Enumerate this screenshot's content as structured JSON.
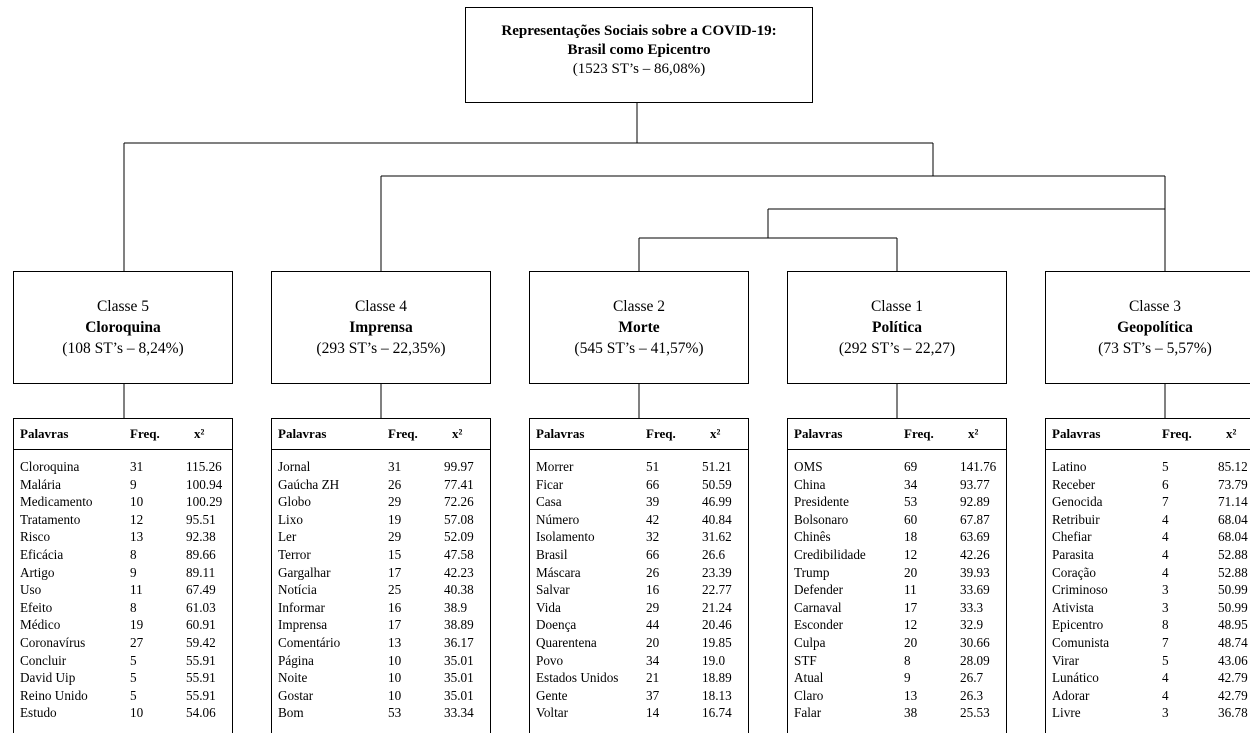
{
  "root": {
    "title_line1": "Representações Sociais sobre a COVID-19:",
    "title_line2": "Brasil como Epicentro",
    "count": "(1523 ST’s – 86,08%)"
  },
  "table_headers": {
    "word": "Palavras",
    "freq": "Freq.",
    "x2": "x²"
  },
  "classes": [
    {
      "label": "Classe 5",
      "name": "Cloroquina",
      "count": "(108 ST’s – 8,24%)",
      "rows": [
        {
          "w": "Cloroquina",
          "f": "31",
          "x": "115.26"
        },
        {
          "w": "Malária",
          "f": "9",
          "x": "100.94"
        },
        {
          "w": "Medicamento",
          "f": "10",
          "x": "100.29"
        },
        {
          "w": "Tratamento",
          "f": "12",
          "x": "95.51"
        },
        {
          "w": "Risco",
          "f": "13",
          "x": "92.38"
        },
        {
          "w": "Eficácia",
          "f": "8",
          "x": "89.66"
        },
        {
          "w": "Artigo",
          "f": "9",
          "x": "89.11"
        },
        {
          "w": "Uso",
          "f": "11",
          "x": "67.49"
        },
        {
          "w": "Efeito",
          "f": "8",
          "x": "61.03"
        },
        {
          "w": "Médico",
          "f": "19",
          "x": "60.91"
        },
        {
          "w": "Coronavírus",
          "f": "27",
          "x": "59.42"
        },
        {
          "w": "Concluir",
          "f": "5",
          "x": "55.91"
        },
        {
          "w": "David Uip",
          "f": "5",
          "x": "55.91"
        },
        {
          "w": "Reino Unido",
          "f": "5",
          "x": "55.91"
        },
        {
          "w": "Estudo",
          "f": "10",
          "x": "54.06"
        }
      ]
    },
    {
      "label": "Classe 4",
      "name": "Imprensa",
      "count": "(293 ST’s – 22,35%)",
      "rows": [
        {
          "w": "Jornal",
          "f": "31",
          "x": "99.97"
        },
        {
          "w": "Gaúcha ZH",
          "f": "26",
          "x": "77.41"
        },
        {
          "w": "Globo",
          "f": "29",
          "x": "72.26"
        },
        {
          "w": "Lixo",
          "f": "19",
          "x": "57.08"
        },
        {
          "w": "Ler",
          "f": "29",
          "x": "52.09"
        },
        {
          "w": "Terror",
          "f": "15",
          "x": "47.58"
        },
        {
          "w": "Gargalhar",
          "f": "17",
          "x": "42.23"
        },
        {
          "w": "Notícia",
          "f": "25",
          "x": "40.38"
        },
        {
          "w": "Informar",
          "f": "16",
          "x": "38.9"
        },
        {
          "w": "Imprensa",
          "f": "17",
          "x": "38.89"
        },
        {
          "w": "Comentário",
          "f": "13",
          "x": "36.17"
        },
        {
          "w": "Página",
          "f": "10",
          "x": "35.01"
        },
        {
          "w": "Noite",
          "f": "10",
          "x": "35.01"
        },
        {
          "w": "Gostar",
          "f": "10",
          "x": "35.01"
        },
        {
          "w": "Bom",
          "f": "53",
          "x": "33.34"
        }
      ]
    },
    {
      "label": "Classe 2",
      "name": "Morte",
      "count": "(545 ST’s – 41,57%)",
      "rows": [
        {
          "w": "Morrer",
          "f": "51",
          "x": "51.21"
        },
        {
          "w": "Ficar",
          "f": "66",
          "x": "50.59"
        },
        {
          "w": "Casa",
          "f": "39",
          "x": "46.99"
        },
        {
          "w": "Número",
          "f": "42",
          "x": "40.84"
        },
        {
          "w": "Isolamento",
          "f": "32",
          "x": "31.62"
        },
        {
          "w": "Brasil",
          "f": "66",
          "x": "26.6"
        },
        {
          "w": "Máscara",
          "f": "26",
          "x": "23.39"
        },
        {
          "w": "Salvar",
          "f": "16",
          "x": "22.77"
        },
        {
          "w": "Vida",
          "f": "29",
          "x": "21.24"
        },
        {
          "w": "Doença",
          "f": "44",
          "x": "20.46"
        },
        {
          "w": "Quarentena",
          "f": "20",
          "x": "19.85"
        },
        {
          "w": "Povo",
          "f": "34",
          "x": "19.0"
        },
        {
          "w": "Estados Unidos",
          "f": "21",
          "x": "18.89"
        },
        {
          "w": "Gente",
          "f": "37",
          "x": "18.13"
        },
        {
          "w": "Voltar",
          "f": "14",
          "x": "16.74"
        }
      ]
    },
    {
      "label": "Classe 1",
      "name": "Política",
      "count": "(292 ST’s – 22,27)",
      "rows": [
        {
          "w": "OMS",
          "f": "69",
          "x": "141.76"
        },
        {
          "w": "China",
          "f": "34",
          "x": "93.77"
        },
        {
          "w": "Presidente",
          "f": "53",
          "x": "92.89"
        },
        {
          "w": "Bolsonaro",
          "f": "60",
          "x": "67.87"
        },
        {
          "w": "Chinês",
          "f": "18",
          "x": "63.69"
        },
        {
          "w": "Credibilidade",
          "f": "12",
          "x": "42.26"
        },
        {
          "w": "Trump",
          "f": "20",
          "x": "39.93"
        },
        {
          "w": "Defender",
          "f": "11",
          "x": "33.69"
        },
        {
          "w": "Carnaval",
          "f": "17",
          "x": "33.3"
        },
        {
          "w": "Esconder",
          "f": "12",
          "x": "32.9"
        },
        {
          "w": "Culpa",
          "f": "20",
          "x": "30.66"
        },
        {
          "w": "STF",
          "f": "8",
          "x": "28.09"
        },
        {
          "w": "Atual",
          "f": "9",
          "x": "26.7"
        },
        {
          "w": "Claro",
          "f": "13",
          "x": "26.3"
        },
        {
          "w": "Falar",
          "f": "38",
          "x": "25.53"
        }
      ]
    },
    {
      "label": "Classe 3",
      "name": "Geopolítica",
      "count": "(73 ST’s – 5,57%)",
      "rows": [
        {
          "w": "Latino",
          "f": "5",
          "x": "85.12"
        },
        {
          "w": "Receber",
          "f": "6",
          "x": "73.79"
        },
        {
          "w": "Genocida",
          "f": "7",
          "x": "71.14"
        },
        {
          "w": "Retribuir",
          "f": "4",
          "x": "68.04"
        },
        {
          "w": "Chefiar",
          "f": "4",
          "x": "68.04"
        },
        {
          "w": "Parasita",
          "f": "4",
          "x": "52.88"
        },
        {
          "w": "Coração",
          "f": "4",
          "x": "52.88"
        },
        {
          "w": "Criminoso",
          "f": "3",
          "x": "50.99"
        },
        {
          "w": "Ativista",
          "f": "3",
          "x": "50.99"
        },
        {
          "w": "Epicentro",
          "f": "8",
          "x": "48.95"
        },
        {
          "w": "Comunista",
          "f": "7",
          "x": "48.74"
        },
        {
          "w": "Virar",
          "f": "5",
          "x": "43.06"
        },
        {
          "w": "Lunático",
          "f": "4",
          "x": "42.79"
        },
        {
          "w": "Adorar",
          "f": "4",
          "x": "42.79"
        },
        {
          "w": "Livre",
          "f": "3",
          "x": "36.78"
        }
      ]
    }
  ]
}
